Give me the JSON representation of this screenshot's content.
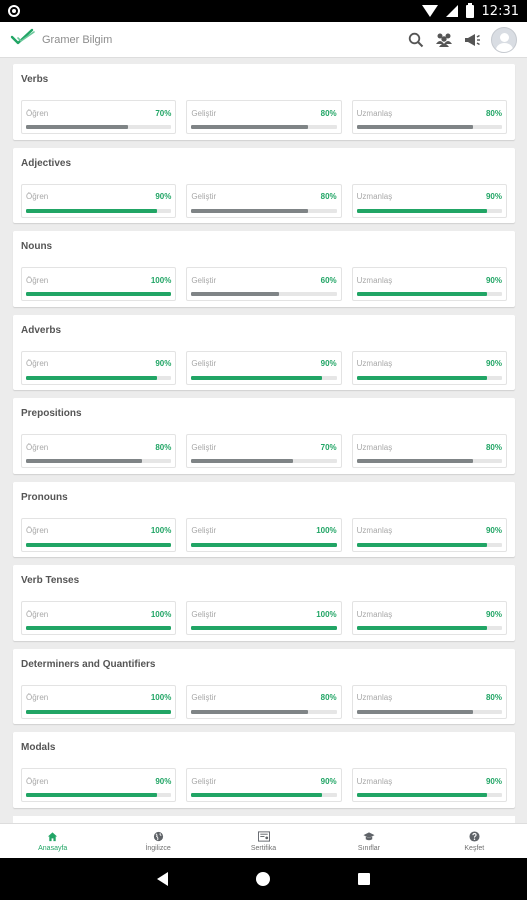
{
  "status_bar": {
    "time": "12:31"
  },
  "app": {
    "title": "Gramer Bilgim"
  },
  "colors": {
    "green": "#21a565",
    "gray": "#7f8486"
  },
  "topics": [
    {
      "name": "Verbs",
      "levels": [
        {
          "label": "Öğren",
          "pct": "70%",
          "value": 70,
          "complete": false
        },
        {
          "label": "Geliştir",
          "pct": "80%",
          "value": 80,
          "complete": false
        },
        {
          "label": "Uzmanlaş",
          "pct": "80%",
          "value": 80,
          "complete": false
        }
      ]
    },
    {
      "name": "Adjectives",
      "levels": [
        {
          "label": "Öğren",
          "pct": "90%",
          "value": 90,
          "complete": true
        },
        {
          "label": "Geliştir",
          "pct": "80%",
          "value": 80,
          "complete": false
        },
        {
          "label": "Uzmanlaş",
          "pct": "90%",
          "value": 90,
          "complete": true
        }
      ]
    },
    {
      "name": "Nouns",
      "levels": [
        {
          "label": "Öğren",
          "pct": "100%",
          "value": 100,
          "complete": true
        },
        {
          "label": "Geliştir",
          "pct": "60%",
          "value": 60,
          "complete": false
        },
        {
          "label": "Uzmanlaş",
          "pct": "90%",
          "value": 90,
          "complete": true
        }
      ]
    },
    {
      "name": "Adverbs",
      "levels": [
        {
          "label": "Öğren",
          "pct": "90%",
          "value": 90,
          "complete": true
        },
        {
          "label": "Geliştir",
          "pct": "90%",
          "value": 90,
          "complete": true
        },
        {
          "label": "Uzmanlaş",
          "pct": "90%",
          "value": 90,
          "complete": true
        }
      ]
    },
    {
      "name": "Prepositions",
      "levels": [
        {
          "label": "Öğren",
          "pct": "80%",
          "value": 80,
          "complete": false
        },
        {
          "label": "Geliştir",
          "pct": "70%",
          "value": 70,
          "complete": false
        },
        {
          "label": "Uzmanlaş",
          "pct": "80%",
          "value": 80,
          "complete": false
        }
      ]
    },
    {
      "name": "Pronouns",
      "levels": [
        {
          "label": "Öğren",
          "pct": "100%",
          "value": 100,
          "complete": true
        },
        {
          "label": "Geliştir",
          "pct": "100%",
          "value": 100,
          "complete": true
        },
        {
          "label": "Uzmanlaş",
          "pct": "90%",
          "value": 90,
          "complete": true
        }
      ]
    },
    {
      "name": "Verb Tenses",
      "levels": [
        {
          "label": "Öğren",
          "pct": "100%",
          "value": 100,
          "complete": true
        },
        {
          "label": "Geliştir",
          "pct": "100%",
          "value": 100,
          "complete": true
        },
        {
          "label": "Uzmanlaş",
          "pct": "90%",
          "value": 90,
          "complete": true
        }
      ]
    },
    {
      "name": "Determiners and Quantifiers",
      "levels": [
        {
          "label": "Öğren",
          "pct": "100%",
          "value": 100,
          "complete": true
        },
        {
          "label": "Geliştir",
          "pct": "80%",
          "value": 80,
          "complete": false
        },
        {
          "label": "Uzmanlaş",
          "pct": "80%",
          "value": 80,
          "complete": false
        }
      ]
    },
    {
      "name": "Modals",
      "levels": [
        {
          "label": "Öğren",
          "pct": "90%",
          "value": 90,
          "complete": true
        },
        {
          "label": "Geliştir",
          "pct": "90%",
          "value": 90,
          "complete": true
        },
        {
          "label": "Uzmanlaş",
          "pct": "90%",
          "value": 90,
          "complete": true
        }
      ]
    }
  ],
  "bottom_nav": [
    {
      "label": "Anasayfa",
      "icon": "home-icon",
      "active": true
    },
    {
      "label": "İngilizce",
      "icon": "globe-icon",
      "active": false
    },
    {
      "label": "Sertifika",
      "icon": "certificate-icon",
      "active": false
    },
    {
      "label": "Sınıflar",
      "icon": "graduation-cap-icon",
      "active": false
    },
    {
      "label": "Keşfet",
      "icon": "help-circle-icon",
      "active": false
    }
  ]
}
